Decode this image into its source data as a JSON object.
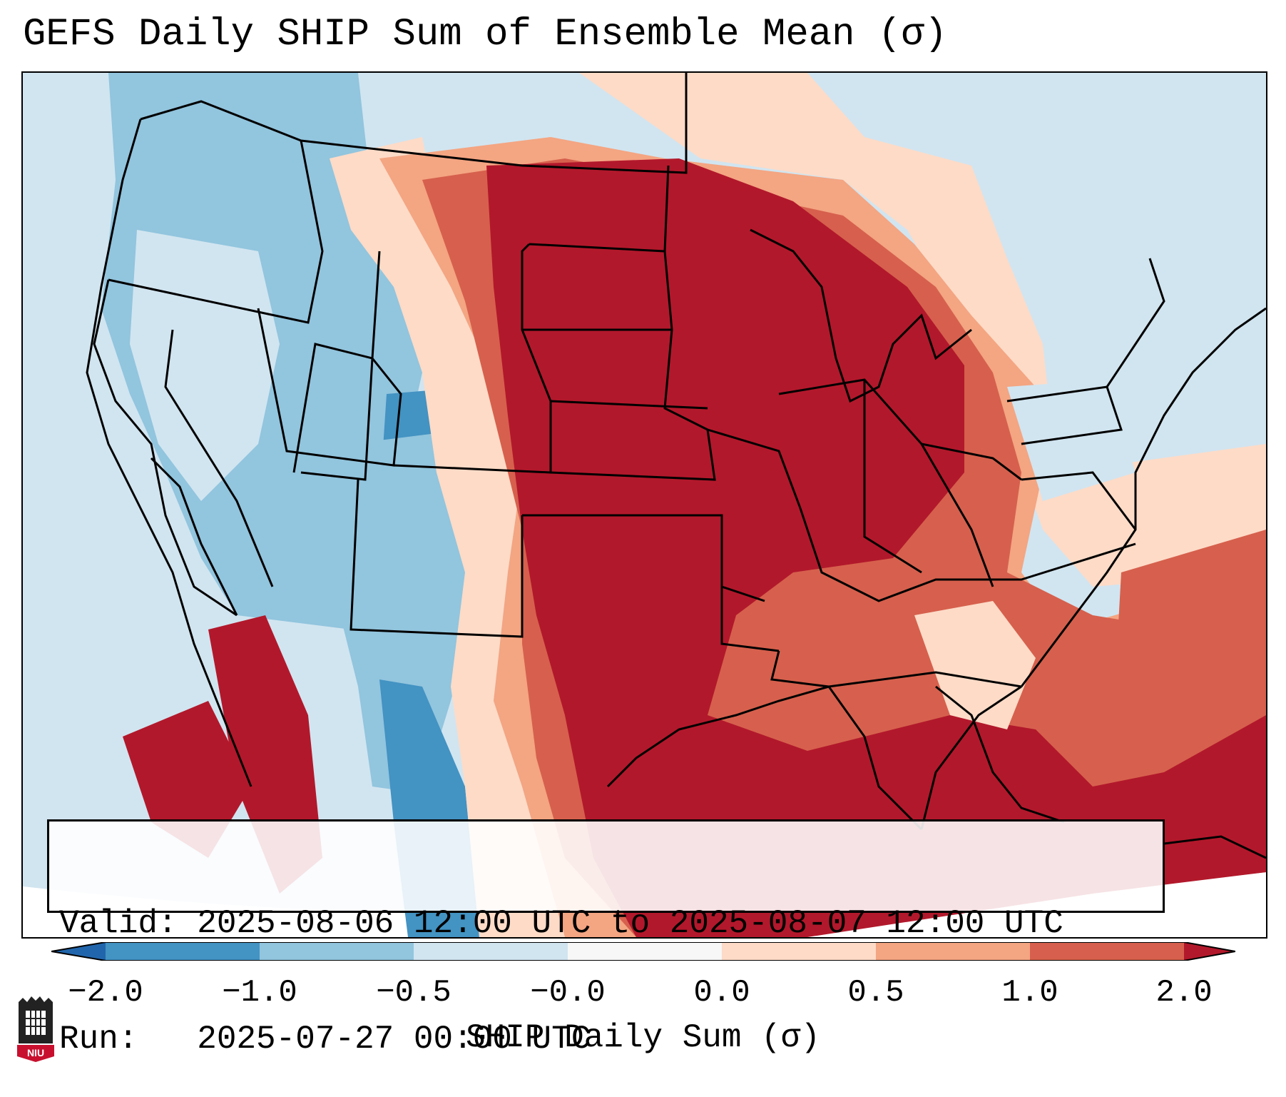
{
  "title": "GEFS Daily SHIP Sum of Ensemble Mean (σ)",
  "info": {
    "valid_line": "Valid: 2025-08-06 12:00 UTC to 2025-08-07 12:00 UTC",
    "run_line": "Run:   2025-07-27 00:00 UTC"
  },
  "colorbar": {
    "label": "SHIP Daily Sum (σ)",
    "ticks": [
      "−2.0",
      "−1.0",
      "−0.5",
      "−0.0",
      "0.0",
      "0.5",
      "1.0",
      "2.0"
    ],
    "colors": [
      "#4393c3",
      "#92c5de",
      "#d1e5f0",
      "#f7f7f7",
      "#fddbc7",
      "#f4a582",
      "#d6604d"
    ],
    "under_color": "#2166ac",
    "over_color": "#b2182b"
  },
  "map": {
    "ocean_color": "#d1e5f0",
    "region_colors": {
      "strong_positive": "#b2182b",
      "positive": "#d6604d",
      "weak_positive": "#f4a582",
      "slight_positive": "#fddbc7",
      "slight_negative": "#d1e5f0",
      "negative": "#92c5de",
      "strong_negative": "#4393c3"
    }
  },
  "logo": {
    "text": "NIU",
    "color": "#c8102e"
  },
  "icons": {
    "logo": "niu-castle-icon"
  }
}
